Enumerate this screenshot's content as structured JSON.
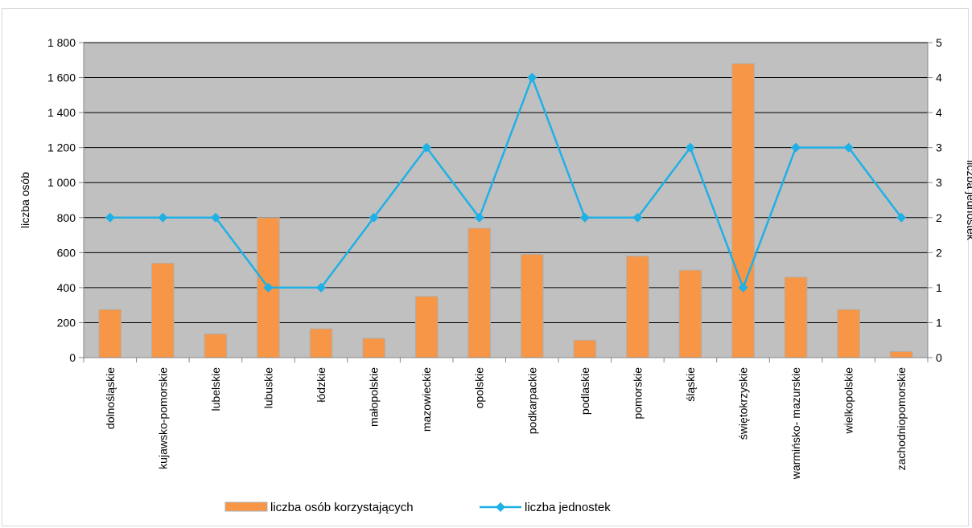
{
  "chart_data": {
    "type": "bar",
    "categories": [
      "dolnośląskie",
      "kujawsko-pomorskie",
      "lubelskie",
      "lubuskie",
      "łódzkie",
      "małopolskie",
      "mazowieckie",
      "opolskie",
      "podkarpackie",
      "podlaskie",
      "pomorskie",
      "śląskie",
      "świętokrzyskie",
      "warmińsko- mazurskie",
      "wielkopolskie",
      "zachodniopomorskie"
    ],
    "series": [
      {
        "name": "liczba osób korzystających",
        "kind": "bar",
        "axis": "left",
        "color": "#f79646",
        "values": [
          275,
          540,
          135,
          800,
          165,
          110,
          350,
          740,
          590,
          100,
          580,
          500,
          1680,
          460,
          275,
          35
        ]
      },
      {
        "name": "liczba jednostek",
        "kind": "line",
        "axis": "right",
        "color": "#1fb0e6",
        "values": [
          2,
          2,
          2,
          1,
          1,
          2,
          3,
          2,
          4,
          2,
          2,
          3,
          1,
          3,
          3,
          2
        ]
      }
    ],
    "ylabel": "liczba osób",
    "y2label": "liczba jednostek",
    "ylim": [
      0,
      1800
    ],
    "y2lim": [
      0,
      4.5
    ],
    "yticks": [
      0,
      200,
      400,
      600,
      800,
      1000,
      1200,
      1400,
      1600,
      1800
    ],
    "yticklabels": [
      "0",
      "200",
      "400",
      "600",
      "800",
      "1 000",
      "1 200",
      "1 400",
      "1 600",
      "1 800"
    ],
    "y2ticklabels": [
      "0",
      "1",
      "1",
      "2",
      "2",
      "3",
      "3",
      "4",
      "4",
      "5"
    ],
    "grid": true,
    "plot_background": "#c0c0c0",
    "legend_position": "bottom"
  }
}
